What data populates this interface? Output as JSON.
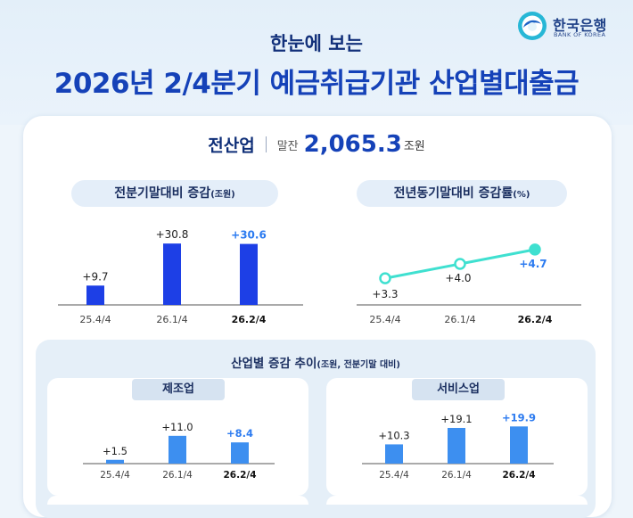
{
  "header": {
    "subtitle": "한눈에 보는",
    "title": "2026년 2/4분기 예금취급기관 산업별대출금",
    "logo_ko": "한국은행",
    "logo_en": "BANK OF KOREA"
  },
  "total": {
    "label": "전산업",
    "sub_label": "말잔",
    "value": "2,065.3",
    "unit": "조원"
  },
  "colors": {
    "primary_bar": "#1d3fe6",
    "light_bar": "#3d8ff0",
    "line": "#3fe0d0",
    "axis": "#555555",
    "highlight_text": "#2c7bf0"
  },
  "chart_data": [
    {
      "id": "qoq",
      "type": "bar",
      "title": "전분기말대비 증감",
      "title_unit": "(조원)",
      "categories": [
        "25.4/4",
        "26.1/4",
        "26.2/4"
      ],
      "values": [
        9.7,
        30.8,
        30.6
      ],
      "labels": [
        "+9.7",
        "+30.8",
        "+30.6"
      ],
      "ylim": [
        0,
        34
      ]
    },
    {
      "id": "yoy",
      "type": "line",
      "title": "전년동기말대비 증감률",
      "title_unit": "(%)",
      "categories": [
        "25.4/4",
        "26.1/4",
        "26.2/4"
      ],
      "values": [
        3.3,
        4.0,
        4.7
      ],
      "labels": [
        "+3.3",
        "+4.0",
        "+4.7"
      ],
      "ylim": [
        2.0,
        6.0
      ]
    },
    {
      "id": "manufacturing",
      "type": "bar",
      "section_title": "산업별 증감 추이",
      "section_unit": "(조원, 전분기말 대비)",
      "title": "제조업",
      "categories": [
        "25.4/4",
        "26.1/4",
        "26.2/4"
      ],
      "values": [
        1.5,
        11.0,
        8.4
      ],
      "labels": [
        "+1.5",
        "+11.0",
        "+8.4"
      ],
      "ylim": [
        0,
        12
      ]
    },
    {
      "id": "services",
      "type": "bar",
      "title": "서비스업",
      "categories": [
        "25.4/4",
        "26.1/4",
        "26.2/4"
      ],
      "values": [
        10.3,
        19.1,
        19.9
      ],
      "labels": [
        "+10.3",
        "+19.1",
        "+19.9"
      ],
      "ylim": [
        0,
        21
      ]
    }
  ]
}
